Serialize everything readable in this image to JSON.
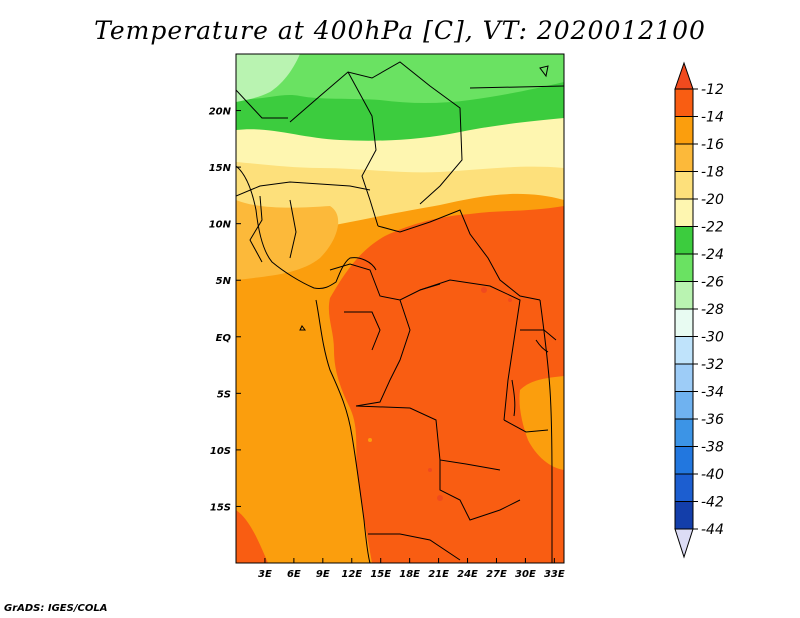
{
  "title": "Temperature at 400hPa [C], VT: 2020012100",
  "credit": "GrADS: IGES/COLA",
  "map": {
    "lon_range": [
      0,
      34
    ],
    "lat_range": [
      -20,
      25
    ],
    "lat_ticks": [
      {
        "lat": 20,
        "label": "20N"
      },
      {
        "lat": 15,
        "label": "15N"
      },
      {
        "lat": 10,
        "label": "10N"
      },
      {
        "lat": 5,
        "label": "5N"
      },
      {
        "lat": 0,
        "label": "EQ"
      },
      {
        "lat": -5,
        "label": "5S"
      },
      {
        "lat": -10,
        "label": "10S"
      },
      {
        "lat": -15,
        "label": "15S"
      }
    ],
    "lon_ticks": [
      {
        "lon": 3,
        "label": "3E"
      },
      {
        "lon": 6,
        "label": "6E"
      },
      {
        "lon": 9,
        "label": "9E"
      },
      {
        "lon": 12,
        "label": "12E"
      },
      {
        "lon": 15,
        "label": "15E"
      },
      {
        "lon": 18,
        "label": "18E"
      },
      {
        "lon": 21,
        "label": "21E"
      },
      {
        "lon": 24,
        "label": "24E"
      },
      {
        "lon": 27,
        "label": "27E"
      },
      {
        "lon": 30,
        "label": "30E"
      },
      {
        "lon": 33,
        "label": "33E"
      }
    ]
  },
  "colorbar": {
    "top_color": "#f04a1e",
    "bottom_color": "#dcdcf5",
    "levels": [
      {
        "label": "-12",
        "color": "#f95d12"
      },
      {
        "label": "-14",
        "color": "#fb9e0d"
      },
      {
        "label": "-16",
        "color": "#fcb93a"
      },
      {
        "label": "-18",
        "color": "#fde07b"
      },
      {
        "label": "-20",
        "color": "#fef6b0"
      },
      {
        "label": "-22",
        "color": "#3ccc3e"
      },
      {
        "label": "-24",
        "color": "#6ae262"
      },
      {
        "label": "-26",
        "color": "#b9f3b1"
      },
      {
        "label": "-28",
        "color": "#e8fbf2"
      },
      {
        "label": "-30",
        "color": "#bfe3fb"
      },
      {
        "label": "-32",
        "color": "#9dccf7"
      },
      {
        "label": "-34",
        "color": "#6fb2f0"
      },
      {
        "label": "-36",
        "color": "#3c94e6"
      },
      {
        "label": "-38",
        "color": "#2277df"
      },
      {
        "label": "-40",
        "color": "#1c5ed0"
      },
      {
        "label": "-42",
        "color": "#133eaa"
      },
      {
        "label": "-44",
        "color": "#0d1a70"
      }
    ]
  }
}
